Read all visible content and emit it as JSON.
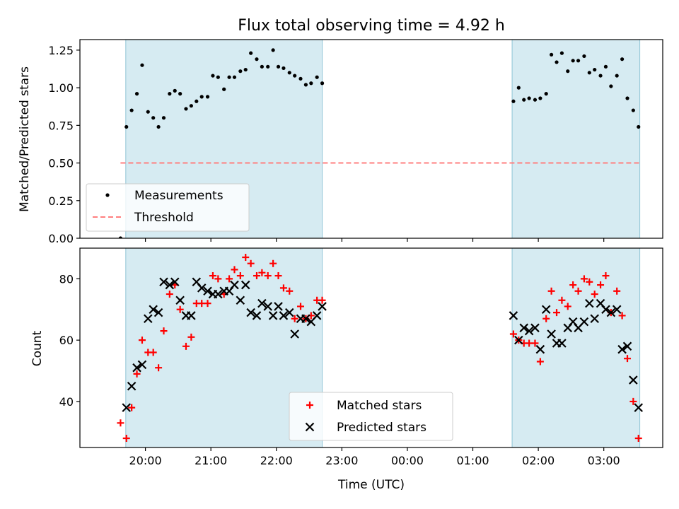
{
  "chart_data": [
    {
      "type": "scatter",
      "title": "Flux total observing time = 4.92 h",
      "xlabel": "",
      "ylabel": "Matched/Predicted stars",
      "ylim": [
        0,
        1.32
      ],
      "yticks": [
        0,
        0.25,
        0.5,
        0.75,
        1.0,
        1.25
      ],
      "ytick_labels": [
        "0.00",
        "0.25",
        "0.50",
        "0.75",
        "1.00",
        "1.25"
      ],
      "xticks": [
        20,
        21,
        22,
        23,
        24,
        25,
        26,
        27
      ],
      "xtick_labels": [
        "",
        "",
        "",
        "",
        "",
        "",
        "",
        ""
      ],
      "shaded_intervals": [
        [
          19.7,
          22.7
        ],
        [
          25.6,
          27.55
        ]
      ],
      "threshold": {
        "value": 0.5,
        "x_start": 19.62,
        "x_end": 27.55,
        "color": "#ff7f7f"
      },
      "legend": {
        "placement": "lower-left",
        "entries": [
          "Measurements",
          "Threshold"
        ]
      },
      "series": [
        {
          "name": "Measurements",
          "marker": "dot",
          "color": "#000000",
          "x": [
            19.62,
            19.71,
            19.79,
            19.87,
            19.95,
            20.04,
            20.12,
            20.2,
            20.28,
            20.37,
            20.45,
            20.53,
            20.62,
            20.7,
            20.78,
            20.86,
            20.95,
            21.03,
            21.11,
            21.2,
            21.28,
            21.36,
            21.45,
            21.53,
            21.61,
            21.7,
            21.78,
            21.87,
            21.95,
            22.03,
            22.11,
            22.2,
            22.28,
            22.37,
            22.45,
            22.53,
            22.62,
            22.7,
            25.62,
            25.7,
            25.78,
            25.86,
            25.95,
            26.03,
            26.12,
            26.2,
            26.28,
            26.36,
            26.45,
            26.53,
            26.61,
            26.7,
            26.78,
            26.86,
            26.95,
            27.03,
            27.11,
            27.2,
            27.28,
            27.36,
            27.45,
            27.53
          ],
          "y": [
            0.0,
            0.74,
            0.85,
            0.96,
            1.15,
            0.84,
            0.8,
            0.74,
            0.8,
            0.96,
            0.98,
            0.96,
            0.86,
            0.88,
            0.91,
            0.94,
            0.94,
            1.08,
            1.07,
            0.99,
            1.07,
            1.07,
            1.11,
            1.12,
            1.23,
            1.19,
            1.14,
            1.14,
            1.25,
            1.14,
            1.13,
            1.1,
            1.08,
            1.06,
            1.02,
            1.03,
            1.07,
            1.03,
            0.91,
            1.0,
            0.92,
            0.93,
            0.92,
            0.93,
            0.96,
            1.22,
            1.17,
            1.23,
            1.11,
            1.18,
            1.18,
            1.21,
            1.1,
            1.12,
            1.08,
            1.14,
            1.01,
            1.08,
            1.19,
            0.93,
            0.85,
            0.74
          ]
        }
      ]
    },
    {
      "type": "scatter",
      "xlabel": "Time (UTC)",
      "ylabel": "Count",
      "ylim": [
        25,
        90
      ],
      "yticks": [
        40,
        60,
        80
      ],
      "ytick_labels": [
        "40",
        "60",
        "80"
      ],
      "xlim": [
        19.0,
        27.9
      ],
      "xticks": [
        20,
        21,
        22,
        23,
        24,
        25,
        26,
        27
      ],
      "xtick_labels": [
        "20:00",
        "21:00",
        "22:00",
        "23:00",
        "00:00",
        "01:00",
        "02:00",
        "03:00"
      ],
      "shaded_intervals": [
        [
          19.7,
          22.7
        ],
        [
          25.6,
          27.55
        ]
      ],
      "legend": {
        "placement": "bottom-center",
        "entries": [
          "Matched stars",
          "Predicted stars"
        ]
      },
      "series": [
        {
          "name": "Matched stars",
          "marker": "plus",
          "color": "#ff0000",
          "x": [
            19.62,
            19.71,
            19.79,
            19.87,
            19.95,
            20.04,
            20.12,
            20.2,
            20.28,
            20.37,
            20.45,
            20.53,
            20.62,
            20.7,
            20.78,
            20.86,
            20.95,
            21.03,
            21.11,
            21.2,
            21.28,
            21.36,
            21.45,
            21.53,
            21.61,
            21.7,
            21.78,
            21.87,
            21.95,
            22.03,
            22.11,
            22.2,
            22.28,
            22.37,
            22.45,
            22.53,
            22.62,
            22.7,
            25.62,
            25.7,
            25.78,
            25.86,
            25.95,
            26.03,
            26.12,
            26.2,
            26.28,
            26.36,
            26.45,
            26.53,
            26.61,
            26.7,
            26.78,
            26.86,
            26.95,
            27.03,
            27.11,
            27.2,
            27.28,
            27.36,
            27.45,
            27.53
          ],
          "y": [
            33,
            28,
            38,
            49,
            60,
            56,
            56,
            51,
            63,
            75,
            78,
            70,
            58,
            61,
            72,
            72,
            72,
            81,
            80,
            75,
            80,
            83,
            81,
            87,
            85,
            81,
            82,
            81,
            85,
            81,
            77,
            76,
            67,
            71,
            67,
            68,
            73,
            73,
            62,
            60,
            59,
            59,
            59,
            53,
            67,
            76,
            69,
            73,
            71,
            78,
            76,
            80,
            79,
            75,
            78,
            81,
            69,
            76,
            68,
            54,
            40,
            28
          ]
        },
        {
          "name": "Predicted stars",
          "marker": "x",
          "color": "#000000",
          "x": [
            19.71,
            19.79,
            19.87,
            19.95,
            20.04,
            20.12,
            20.2,
            20.28,
            20.37,
            20.45,
            20.53,
            20.62,
            20.7,
            20.78,
            20.86,
            20.95,
            21.03,
            21.11,
            21.2,
            21.28,
            21.36,
            21.45,
            21.53,
            21.61,
            21.7,
            21.78,
            21.87,
            21.95,
            22.03,
            22.11,
            22.2,
            22.28,
            22.37,
            22.45,
            22.53,
            22.62,
            22.7,
            25.62,
            25.7,
            25.78,
            25.86,
            25.95,
            26.03,
            26.12,
            26.2,
            26.28,
            26.36,
            26.45,
            26.53,
            26.61,
            26.7,
            26.78,
            26.86,
            26.95,
            27.03,
            27.11,
            27.2,
            27.28,
            27.36,
            27.45,
            27.53
          ],
          "y": [
            38,
            45,
            51,
            52,
            67,
            70,
            69,
            79,
            78,
            79,
            73,
            68,
            68,
            79,
            77,
            76,
            75,
            75,
            76,
            76,
            78,
            73,
            78,
            69,
            68,
            72,
            71,
            68,
            71,
            68,
            69,
            62,
            67,
            67,
            66,
            68,
            71,
            68,
            60,
            64,
            63,
            64,
            57,
            70,
            62,
            59,
            59,
            64,
            66,
            64,
            66,
            72,
            67,
            72,
            70,
            69,
            70,
            57,
            58,
            47,
            38
          ]
        }
      ]
    }
  ]
}
